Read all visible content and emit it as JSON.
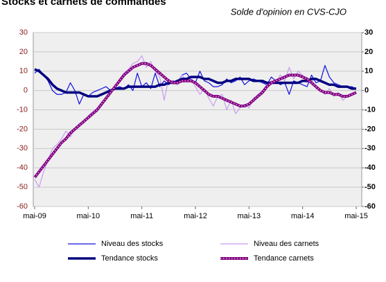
{
  "chart_data": {
    "type": "line",
    "title": "Stocks et carnets de commandes",
    "subtitle": "Solde d'opinion en CVS-CJO",
    "categories": [
      "mai-09",
      null,
      null,
      null,
      null,
      null,
      null,
      null,
      null,
      null,
      null,
      null,
      "mai-10",
      null,
      null,
      null,
      null,
      null,
      null,
      null,
      null,
      null,
      null,
      null,
      "mai-11",
      null,
      null,
      null,
      null,
      null,
      null,
      null,
      null,
      null,
      null,
      null,
      "mai-12",
      null,
      null,
      null,
      null,
      null,
      null,
      null,
      null,
      null,
      null,
      null,
      "mai-13",
      null,
      null,
      null,
      null,
      null,
      null,
      null,
      null,
      null,
      null,
      null,
      "mai-14",
      null,
      null,
      null,
      null,
      null,
      null,
      null,
      null,
      null,
      null,
      null,
      "mai-15"
    ],
    "series": [
      {
        "name": "Niveau des stocks",
        "color": "#1010e0",
        "width": 1.2,
        "values": [
          9,
          11,
          8,
          5,
          0,
          -2,
          -2,
          -1,
          4,
          0,
          -7,
          -2,
          -3,
          -1,
          0,
          1,
          2,
          0,
          1,
          2,
          1,
          3,
          0,
          9,
          2,
          4,
          1,
          9,
          2,
          5,
          3,
          5,
          4,
          8,
          9,
          6,
          4,
          10,
          5,
          4,
          2,
          2,
          3,
          6,
          4,
          5,
          7,
          3,
          5,
          6,
          5,
          4,
          3,
          7,
          5,
          3,
          4,
          -2,
          5,
          4,
          3,
          2,
          8,
          4,
          5,
          13,
          7,
          4,
          3,
          2,
          2,
          2,
          1
        ]
      },
      {
        "name": "Niveau des carnets",
        "color": "#c79cf0",
        "width": 1.2,
        "values": [
          -46,
          -50,
          -42,
          -36,
          -30,
          -28,
          -25,
          -21,
          -24,
          -20,
          -17,
          -17,
          -13,
          -11,
          -9,
          -6,
          -4,
          0,
          1,
          6,
          9,
          11,
          14,
          15,
          18,
          12,
          15,
          10,
          7,
          -5,
          6,
          4,
          3,
          8,
          5,
          6,
          2,
          -2,
          1,
          -4,
          -8,
          -3,
          -2,
          -10,
          -5,
          -12,
          -9,
          -7,
          -9,
          -4,
          -2,
          0,
          3,
          5,
          4,
          8,
          5,
          12,
          6,
          10,
          8,
          4,
          6,
          1,
          0,
          -2,
          1,
          -3,
          -1,
          -5,
          -3,
          -2,
          -1
        ]
      },
      {
        "name": "Tendance stocks",
        "color": "#000080",
        "width": 3.5,
        "values": [
          11,
          10,
          8,
          6,
          3,
          1,
          0,
          -1,
          -1,
          -1,
          -1,
          -2,
          -3,
          -3,
          -3,
          -2,
          -1,
          0,
          1,
          1,
          1,
          2,
          2,
          2,
          2,
          2,
          2,
          2,
          3,
          3,
          4,
          4,
          5,
          6,
          6,
          7,
          7,
          7,
          6,
          6,
          5,
          4,
          4,
          5,
          5,
          6,
          6,
          6,
          6,
          5,
          5,
          5,
          4,
          4,
          4,
          4,
          4,
          4,
          4,
          4,
          5,
          5,
          6,
          6,
          5,
          4,
          3,
          3,
          2,
          2,
          2,
          1,
          1
        ]
      },
      {
        "name": "Tendance carnets",
        "color": "#800080",
        "width": 4,
        "dotted": true,
        "values": [
          -45,
          -42,
          -39,
          -36,
          -33,
          -30,
          -27,
          -25,
          -22,
          -20,
          -18,
          -16,
          -14,
          -12,
          -10,
          -7,
          -4,
          -1,
          2,
          5,
          8,
          10,
          12,
          13,
          14,
          14,
          13,
          11,
          9,
          7,
          5,
          4,
          4,
          5,
          5,
          5,
          4,
          2,
          0,
          -2,
          -3,
          -3,
          -4,
          -5,
          -6,
          -7,
          -8,
          -8,
          -7,
          -5,
          -3,
          -1,
          2,
          4,
          5,
          6,
          7,
          8,
          8,
          8,
          7,
          6,
          4,
          2,
          0,
          -1,
          -1,
          -2,
          -2,
          -3,
          -3,
          -2,
          -1
        ]
      }
    ],
    "ylim": [
      -60,
      30
    ],
    "yticks": [
      30,
      20,
      10,
      0,
      -10,
      -20,
      -30,
      -40,
      -50,
      -60
    ],
    "y2lim": [
      -60,
      30
    ],
    "y2ticks": [
      30,
      20,
      10,
      0,
      -10,
      -20,
      -30,
      -40,
      -50,
      -60
    ],
    "grid": true
  }
}
